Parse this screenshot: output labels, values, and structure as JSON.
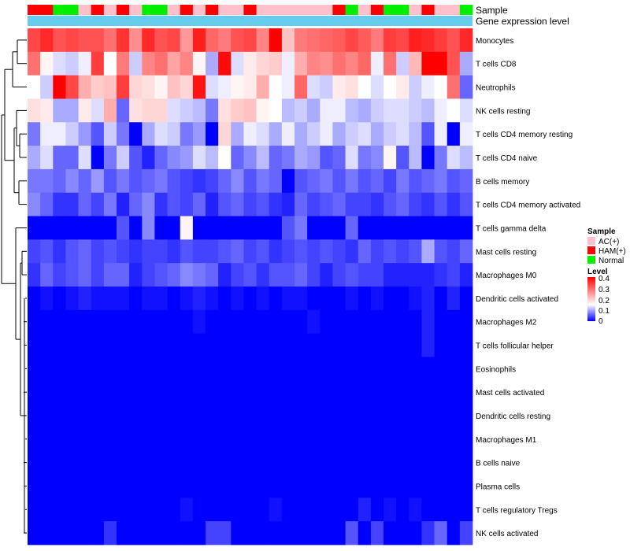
{
  "chart_data": {
    "type": "heatmap",
    "annotation_rows": [
      {
        "title": "Sample"
      },
      {
        "title": "Gene expression level"
      }
    ],
    "sample_groups": [
      "AC(+)",
      "HAM(+)",
      "Normal"
    ],
    "group_colors": {
      "AC(+)": "#ffc0cb",
      "HAM(+)": "#ff0000",
      "Normal": "#00ee00"
    },
    "expression_level_color": "#66ccee",
    "column_groups": [
      "HAM(+)",
      "HAM(+)",
      "Normal",
      "Normal",
      "AC(+)",
      "HAM(+)",
      "AC(+)",
      "HAM(+)",
      "AC(+)",
      "Normal",
      "Normal",
      "AC(+)",
      "HAM(+)",
      "AC(+)",
      "HAM(+)",
      "AC(+)",
      "AC(+)",
      "HAM(+)",
      "AC(+)",
      "AC(+)",
      "AC(+)",
      "AC(+)",
      "AC(+)",
      "AC(+)",
      "HAM(+)",
      "Normal",
      "AC(+)",
      "HAM(+)",
      "Normal",
      "Normal",
      "AC(+)",
      "HAM(+)",
      "AC(+)",
      "AC(+)",
      "Normal"
    ],
    "rows": [
      "Monocytes",
      "T cells CD8",
      "Neutrophils",
      "NK cells resting",
      "T cells CD4 memory resting",
      "T cells CD4 naive",
      "B cells memory",
      "T cells CD4 memory activated",
      "T cells gamma delta",
      "Mast cells resting",
      "Macrophages M0",
      "Dendritic cells activated",
      "Macrophages M2",
      "T cells follicular helper",
      "Eosinophils",
      "Mast cells activated",
      "Dendritic cells resting",
      "Macrophages M1",
      "B cells naive",
      "Plasma cells",
      "T cells regulatory  Tregs",
      "NK cells activated"
    ],
    "values": [
      [
        0.33,
        0.36,
        0.32,
        0.33,
        0.32,
        0.32,
        0.29,
        0.35,
        0.26,
        0.36,
        0.32,
        0.33,
        0.25,
        0.37,
        0.3,
        0.28,
        0.32,
        0.33,
        0.27,
        0.4,
        0.21,
        0.28,
        0.29,
        0.3,
        0.31,
        0.33,
        0.31,
        0.28,
        0.34,
        0.33,
        0.37,
        0.36,
        0.34,
        0.32,
        0.36
      ],
      [
        0.29,
        0.16,
        0.13,
        0.12,
        0.14,
        0.34,
        0.15,
        0.28,
        0.12,
        0.27,
        0.29,
        0.24,
        0.27,
        0.16,
        0.1,
        0.39,
        0.13,
        0.17,
        0.19,
        0.2,
        0.14,
        0.23,
        0.27,
        0.26,
        0.29,
        0.27,
        0.3,
        0.14,
        0.29,
        0.12,
        0.22,
        0.4,
        0.4,
        0.32,
        0.1
      ],
      [
        0.15,
        0.12,
        0.4,
        0.33,
        0.23,
        0.2,
        0.21,
        0.34,
        0.19,
        0.18,
        0.16,
        0.21,
        0.19,
        0.38,
        0.13,
        0.14,
        0.16,
        0.17,
        0.23,
        0.15,
        0.14,
        0.3,
        0.13,
        0.12,
        0.17,
        0.18,
        0.15,
        0.13,
        0.15,
        0.17,
        0.12,
        0.14,
        0.15,
        0.29,
        0.06
      ],
      [
        0.18,
        0.17,
        0.1,
        0.1,
        0.17,
        0.13,
        0.23,
        0.06,
        0.18,
        0.19,
        0.19,
        0.13,
        0.12,
        0.11,
        0.07,
        0.18,
        0.2,
        0.21,
        0.16,
        0.15,
        0.11,
        0.12,
        0.1,
        0.14,
        0.14,
        0.11,
        0.1,
        0.12,
        0.13,
        0.13,
        0.12,
        0.11,
        0.14,
        0.15,
        0.13
      ],
      [
        0.07,
        0.14,
        0.14,
        0.12,
        0.09,
        0.05,
        0.12,
        0.07,
        0.0,
        0.1,
        0.13,
        0.12,
        0.07,
        0.09,
        0.0,
        0.19,
        0.1,
        0.14,
        0.13,
        0.1,
        0.14,
        0.1,
        0.12,
        0.14,
        0.1,
        0.12,
        0.13,
        0.1,
        0.12,
        0.13,
        0.11,
        0.05,
        0.14,
        0.0,
        0.14
      ],
      [
        0.1,
        0.13,
        0.06,
        0.06,
        0.13,
        0.0,
        0.07,
        0.12,
        0.05,
        0.02,
        0.06,
        0.08,
        0.09,
        0.13,
        0.11,
        0.15,
        0.06,
        0.08,
        0.11,
        0.06,
        0.07,
        0.1,
        0.09,
        0.05,
        0.06,
        0.13,
        0.07,
        0.08,
        0.16,
        0.05,
        0.11,
        0.0,
        0.07,
        0.13,
        0.11
      ],
      [
        0.07,
        0.07,
        0.06,
        0.08,
        0.06,
        0.09,
        0.05,
        0.07,
        0.05,
        0.06,
        0.07,
        0.05,
        0.04,
        0.03,
        0.04,
        0.06,
        0.08,
        0.05,
        0.07,
        0.06,
        0.0,
        0.05,
        0.06,
        0.07,
        0.05,
        0.07,
        0.05,
        0.06,
        0.04,
        0.07,
        0.05,
        0.06,
        0.07,
        0.05,
        0.06
      ],
      [
        0.08,
        0.06,
        0.03,
        0.03,
        0.06,
        0.04,
        0.07,
        0.02,
        0.06,
        0.08,
        0.03,
        0.05,
        0.04,
        0.06,
        0.02,
        0.05,
        0.06,
        0.04,
        0.05,
        0.03,
        0.02,
        0.06,
        0.04,
        0.05,
        0.06,
        0.04,
        0.04,
        0.03,
        0.05,
        0.06,
        0.04,
        0.03,
        0.05,
        0.03,
        0.05
      ],
      [
        0.0,
        0.0,
        0.0,
        0.0,
        0.0,
        0.0,
        0.0,
        0.05,
        0.0,
        0.08,
        0.0,
        0.0,
        0.16,
        0.0,
        0.0,
        0.0,
        0.0,
        0.0,
        0.0,
        0.0,
        0.05,
        0.07,
        0.0,
        0.0,
        0.0,
        0.06,
        0.0,
        0.0,
        0.0,
        0.0,
        0.0,
        0.0,
        0.0,
        0.0,
        0.0
      ],
      [
        0.04,
        0.05,
        0.03,
        0.05,
        0.06,
        0.04,
        0.05,
        0.04,
        0.03,
        0.04,
        0.04,
        0.03,
        0.05,
        0.04,
        0.04,
        0.05,
        0.06,
        0.04,
        0.05,
        0.03,
        0.04,
        0.05,
        0.04,
        0.05,
        0.04,
        0.03,
        0.06,
        0.04,
        0.05,
        0.04,
        0.05,
        0.1,
        0.05,
        0.04,
        0.06
      ],
      [
        0.03,
        0.06,
        0.04,
        0.05,
        0.06,
        0.04,
        0.06,
        0.06,
        0.02,
        0.04,
        0.05,
        0.06,
        0.08,
        0.07,
        0.06,
        0.02,
        0.04,
        0.05,
        0.03,
        0.05,
        0.05,
        0.06,
        0.04,
        0.02,
        0.04,
        0.05,
        0.04,
        0.04,
        0.02,
        0.02,
        0.02,
        0.02,
        0.03,
        0.04,
        0.02
      ],
      [
        0.0,
        0.01,
        0.0,
        0.01,
        0.02,
        0.01,
        0.01,
        0.01,
        0.0,
        0.01,
        0.01,
        0.0,
        0.01,
        0.02,
        0.01,
        0.0,
        0.01,
        0.0,
        0.01,
        0.0,
        0.01,
        0.01,
        0.0,
        0.0,
        0.0,
        0.01,
        0.0,
        0.01,
        0.0,
        0.0,
        0.01,
        0.02,
        0.0,
        0.02,
        0.0
      ],
      [
        0.0,
        0.0,
        0.0,
        0.0,
        0.0,
        0.0,
        0.0,
        0.0,
        0.0,
        0.0,
        0.0,
        0.0,
        0.0,
        0.01,
        0.0,
        0.0,
        0.0,
        0.0,
        0.0,
        0.0,
        0.0,
        0.0,
        0.01,
        0.0,
        0.0,
        0.0,
        0.0,
        0.0,
        0.0,
        0.0,
        0.0,
        0.02,
        0.0,
        0.0,
        0.0
      ],
      [
        0.0,
        0.0,
        0.0,
        0.0,
        0.0,
        0.0,
        0.0,
        0.0,
        0.0,
        0.0,
        0.0,
        0.0,
        0.0,
        0.0,
        0.0,
        0.0,
        0.0,
        0.0,
        0.0,
        0.0,
        0.0,
        0.0,
        0.0,
        0.0,
        0.0,
        0.0,
        0.0,
        0.0,
        0.0,
        0.0,
        0.0,
        0.02,
        0.0,
        0.0,
        0.0
      ],
      [
        0.0,
        0.0,
        0.0,
        0.0,
        0.0,
        0.0,
        0.0,
        0.0,
        0.0,
        0.0,
        0.0,
        0.0,
        0.0,
        0.0,
        0.0,
        0.0,
        0.0,
        0.0,
        0.0,
        0.0,
        0.0,
        0.0,
        0.0,
        0.0,
        0.0,
        0.0,
        0.0,
        0.0,
        0.0,
        0.0,
        0.0,
        0.0,
        0.0,
        0.0,
        0.0
      ],
      [
        0.0,
        0.0,
        0.0,
        0.0,
        0.0,
        0.0,
        0.0,
        0.0,
        0.0,
        0.0,
        0.0,
        0.0,
        0.0,
        0.0,
        0.0,
        0.0,
        0.0,
        0.0,
        0.0,
        0.0,
        0.0,
        0.0,
        0.0,
        0.0,
        0.0,
        0.0,
        0.0,
        0.0,
        0.0,
        0.0,
        0.0,
        0.0,
        0.0,
        0.0,
        0.0
      ],
      [
        0.0,
        0.0,
        0.0,
        0.0,
        0.0,
        0.0,
        0.0,
        0.0,
        0.0,
        0.0,
        0.0,
        0.0,
        0.0,
        0.0,
        0.0,
        0.0,
        0.0,
        0.0,
        0.0,
        0.0,
        0.0,
        0.0,
        0.0,
        0.0,
        0.0,
        0.0,
        0.0,
        0.0,
        0.0,
        0.0,
        0.0,
        0.0,
        0.0,
        0.0,
        0.0
      ],
      [
        0.0,
        0.0,
        0.0,
        0.0,
        0.0,
        0.0,
        0.0,
        0.0,
        0.0,
        0.0,
        0.0,
        0.0,
        0.0,
        0.0,
        0.0,
        0.0,
        0.0,
        0.0,
        0.0,
        0.0,
        0.0,
        0.0,
        0.0,
        0.0,
        0.0,
        0.0,
        0.0,
        0.0,
        0.0,
        0.0,
        0.0,
        0.0,
        0.0,
        0.0,
        0.0
      ],
      [
        0.0,
        0.0,
        0.0,
        0.0,
        0.0,
        0.0,
        0.0,
        0.0,
        0.0,
        0.0,
        0.0,
        0.0,
        0.0,
        0.0,
        0.0,
        0.0,
        0.0,
        0.0,
        0.0,
        0.0,
        0.0,
        0.0,
        0.0,
        0.0,
        0.0,
        0.0,
        0.0,
        0.0,
        0.0,
        0.0,
        0.0,
        0.0,
        0.0,
        0.0,
        0.0
      ],
      [
        0.0,
        0.0,
        0.0,
        0.0,
        0.0,
        0.0,
        0.0,
        0.0,
        0.0,
        0.0,
        0.0,
        0.0,
        0.0,
        0.0,
        0.0,
        0.0,
        0.0,
        0.0,
        0.0,
        0.0,
        0.0,
        0.0,
        0.0,
        0.0,
        0.0,
        0.0,
        0.0,
        0.0,
        0.0,
        0.0,
        0.0,
        0.0,
        0.0,
        0.0,
        0.0
      ],
      [
        0.0,
        0.0,
        0.0,
        0.0,
        0.0,
        0.0,
        0.0,
        0.0,
        0.0,
        0.0,
        0.0,
        0.0,
        0.01,
        0.0,
        0.0,
        0.0,
        0.0,
        0.0,
        0.0,
        0.01,
        0.0,
        0.0,
        0.0,
        0.0,
        0.0,
        0.0,
        0.02,
        0.0,
        0.01,
        0.0,
        0.01,
        0.0,
        0.0,
        0.0,
        0.0
      ],
      [
        0.0,
        0.0,
        0.0,
        0.0,
        0.0,
        0.0,
        0.03,
        0.0,
        0.0,
        0.0,
        0.0,
        0.0,
        0.0,
        0.0,
        0.04,
        0.04,
        0.0,
        0.0,
        0.0,
        0.0,
        0.0,
        0.0,
        0.0,
        0.0,
        0.0,
        0.05,
        0.0,
        0.04,
        0.0,
        0.0,
        0.0,
        0.03,
        0.06,
        0.0,
        0.04
      ]
    ],
    "color_scale": {
      "min": 0,
      "max": 0.4,
      "low": "#0000ff",
      "mid": "#ffffff",
      "high": "#ff0000",
      "mid_value": 0.15
    },
    "legend_sample": {
      "title": "Sample",
      "items": [
        "AC(+)",
        "HAM(+)",
        "Normal"
      ]
    },
    "legend_level": {
      "title": "Level",
      "ticks": [
        "0.4",
        "0.3",
        "0.2",
        "0.1",
        "0"
      ]
    },
    "row_dendrogram": true
  }
}
